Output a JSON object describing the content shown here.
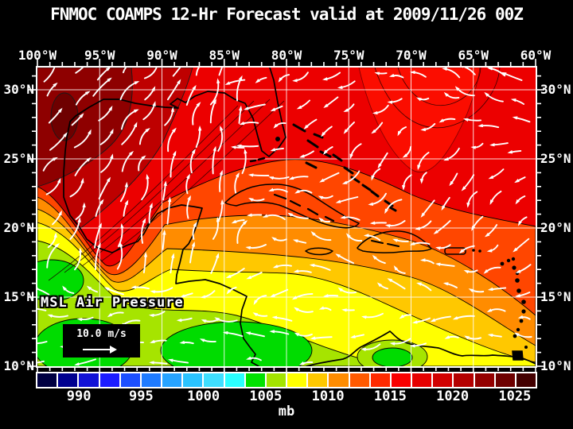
{
  "title": "FNMOC COAMPS 12-Hr Forecast valid at 2009/11/26 00Z",
  "axes": {
    "lon_labels": [
      "100°W",
      "95°W",
      "90°W",
      "85°W",
      "80°W",
      "75°W",
      "70°W",
      "65°W",
      "60°W"
    ],
    "lat_labels": [
      "30°N",
      "25°N",
      "20°N",
      "15°N",
      "10°N"
    ]
  },
  "map": {
    "field_label": "MSL Air Pressure",
    "wind_legend_speed": "10.0 m/s"
  },
  "colorbar": {
    "tick_labels": [
      "990",
      "995",
      "1000",
      "1005",
      "1010",
      "1015",
      "1020",
      "1025"
    ],
    "unit": "mb",
    "cell_colors": [
      "#000041",
      "#00008F",
      "#1212D6",
      "#1C1CFF",
      "#1C4FFF",
      "#1F7BFF",
      "#27A3FF",
      "#2BC3FF",
      "#3FDFFF",
      "#2BFFFF",
      "#00E100",
      "#A3E400",
      "#FFFF00",
      "#FFC800",
      "#FF8C00",
      "#FF5A00",
      "#FF2A00",
      "#F90000",
      "#E60000",
      "#D10000",
      "#B40000",
      "#940000",
      "#6E0000",
      "#430000"
    ]
  },
  "colors": {
    "background": "#000000",
    "text": "#FFFFFF",
    "grid": "#FFFFFF",
    "coast": "#000000",
    "wind_arrow": "#FFFFFF",
    "bands": {
      "maroon_spot": "#6E0000",
      "maroon": "#8E0000",
      "dark_red": "#BE0000",
      "red": "#EC0000",
      "red_bright": "#FB0D00",
      "orange_red": "#FF4600",
      "orange": "#FF8C00",
      "gold": "#FFC800",
      "yellow": "#FFFF00",
      "yellow_green": "#A6E400",
      "green": "#00DC00"
    }
  }
}
